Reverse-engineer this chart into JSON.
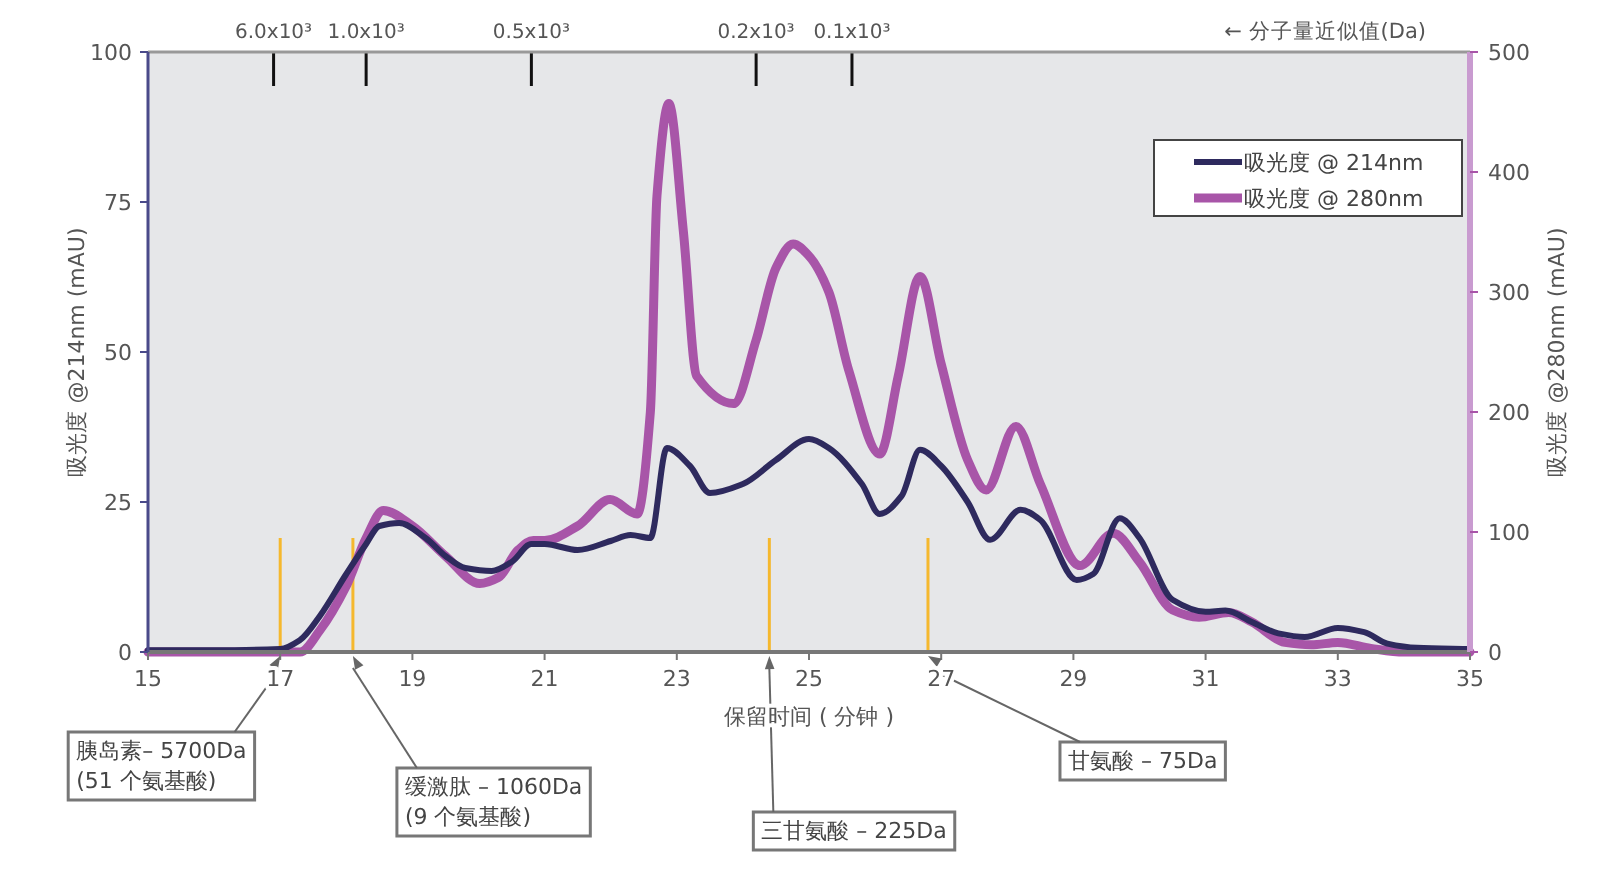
{
  "chart_data": {
    "type": "line",
    "xlabel": "保留时间 ( 分钟 )",
    "ylabel": "吸光度 @214nm (mAU)",
    "y2label": "吸光度 @280nm (mAU)",
    "xlim": [
      15,
      35
    ],
    "xticks": [
      15,
      17,
      19,
      21,
      23,
      25,
      27,
      29,
      31,
      33,
      35
    ],
    "ylim": [
      0,
      100
    ],
    "yticks": [
      0,
      25,
      50,
      75,
      100
    ],
    "y2lim": [
      0,
      500
    ],
    "y2ticks": [
      0,
      100,
      200,
      300,
      400,
      500
    ],
    "grid": false,
    "legend": "top right",
    "marker": "none",
    "line_style": "solid",
    "series": [
      {
        "name": "吸光度 @ 214nm",
        "color": "#2e2a5e",
        "x": [
          15,
          16,
          17,
          17.3,
          17.6,
          18.0,
          18.3,
          18.5,
          18.8,
          19.2,
          19.5,
          19.8,
          20.2,
          20.5,
          20.8,
          21.0,
          21.5,
          22.0,
          22.3,
          22.6,
          22.85,
          23.2,
          23.5,
          24.0,
          24.5,
          25.0,
          25.3,
          25.8,
          26.07,
          26.4,
          26.68,
          27.0,
          27.4,
          27.74,
          28.2,
          28.5,
          29.05,
          29.3,
          29.7,
          30.0,
          30.5,
          31.0,
          31.3,
          31.7,
          32.1,
          32.5,
          33.0,
          33.4,
          33.75,
          34.2,
          35
        ],
        "values": [
          0.3,
          0.3,
          0.5,
          2,
          6,
          13,
          18,
          21,
          21.5,
          19,
          16,
          14,
          13.5,
          15,
          18,
          18,
          17,
          18.5,
          19.5,
          19,
          34,
          31,
          26.5,
          28,
          32,
          35.5,
          34,
          28,
          23,
          26,
          33.7,
          31,
          25,
          18.7,
          23.7,
          22,
          12,
          13,
          22.3,
          19,
          8.7,
          6.7,
          6.9,
          5,
          3.1,
          2.5,
          4,
          3.3,
          1.4,
          0.7,
          0.5
        ]
      },
      {
        "name": "吸光度 @ 280nm",
        "color": "#a855a8",
        "axis": "y2",
        "x": [
          15,
          16,
          17,
          17.3,
          17.6,
          18.0,
          18.3,
          18.56,
          19.0,
          19.5,
          20.02,
          20.3,
          20.6,
          20.83,
          21.0,
          21.5,
          21.99,
          22.4,
          22.6,
          22.7,
          22.88,
          23.1,
          23.3,
          23.86,
          24.2,
          24.5,
          24.76,
          25.0,
          25.3,
          25.6,
          26.07,
          26.35,
          26.68,
          27.0,
          27.4,
          27.68,
          28.13,
          28.5,
          29.1,
          29.6,
          30.0,
          30.5,
          30.9,
          31.35,
          31.7,
          32.2,
          32.6,
          33.0,
          33.5,
          34,
          35
        ],
        "values": [
          0,
          0,
          0,
          0,
          18,
          55,
          95,
          118,
          105,
          80,
          57,
          62,
          85,
          93,
          93,
          105,
          127,
          115,
          200,
          380,
          457,
          350,
          230,
          207,
          260,
          320,
          340,
          330,
          300,
          235,
          165,
          230,
          313,
          240,
          160,
          135,
          188,
          140,
          72,
          99,
          75,
          35,
          29,
          33,
          25,
          8,
          6,
          8,
          3,
          0,
          0
        ]
      }
    ],
    "ref_lines": [
      {
        "axis": "x",
        "value": 16.9,
        "label": "6.0x10³",
        "color": "#111111"
      },
      {
        "axis": "x",
        "value": 18.3,
        "label": "1.0x10³",
        "color": "#111111"
      },
      {
        "axis": "x",
        "value": 20.8,
        "label": "0.5x10³",
        "color": "#111111"
      },
      {
        "axis": "x",
        "value": 24.2,
        "label": "0.2x10³",
        "color": "#111111"
      },
      {
        "axis": "x",
        "value": 25.65,
        "label": "0.1x10³",
        "color": "#111111"
      },
      {
        "axis": "x",
        "value": 17.0,
        "color": "#f5b82e"
      },
      {
        "axis": "x",
        "value": 18.1,
        "color": "#f5b82e"
      },
      {
        "axis": "x",
        "value": 24.4,
        "color": "#f5b82e"
      },
      {
        "axis": "x",
        "value": 26.8,
        "color": "#f5b82e"
      }
    ],
    "annotations": [
      "← 分子量近似值(Da)",
      {
        "text": "胰岛素– 5700Da\n(51 个氨基酸)",
        "x": 17.0,
        "y": 0
      },
      {
        "text": "缓激肽 – 1060Da\n(9 个氨基酸)",
        "x": 18.1,
        "y": 0
      },
      {
        "text": "三甘氨酸 – 225Da",
        "x": 24.4,
        "y": 0
      },
      {
        "text": "甘氨酸  – 75Da",
        "x": 26.8,
        "y": 0
      }
    ]
  }
}
